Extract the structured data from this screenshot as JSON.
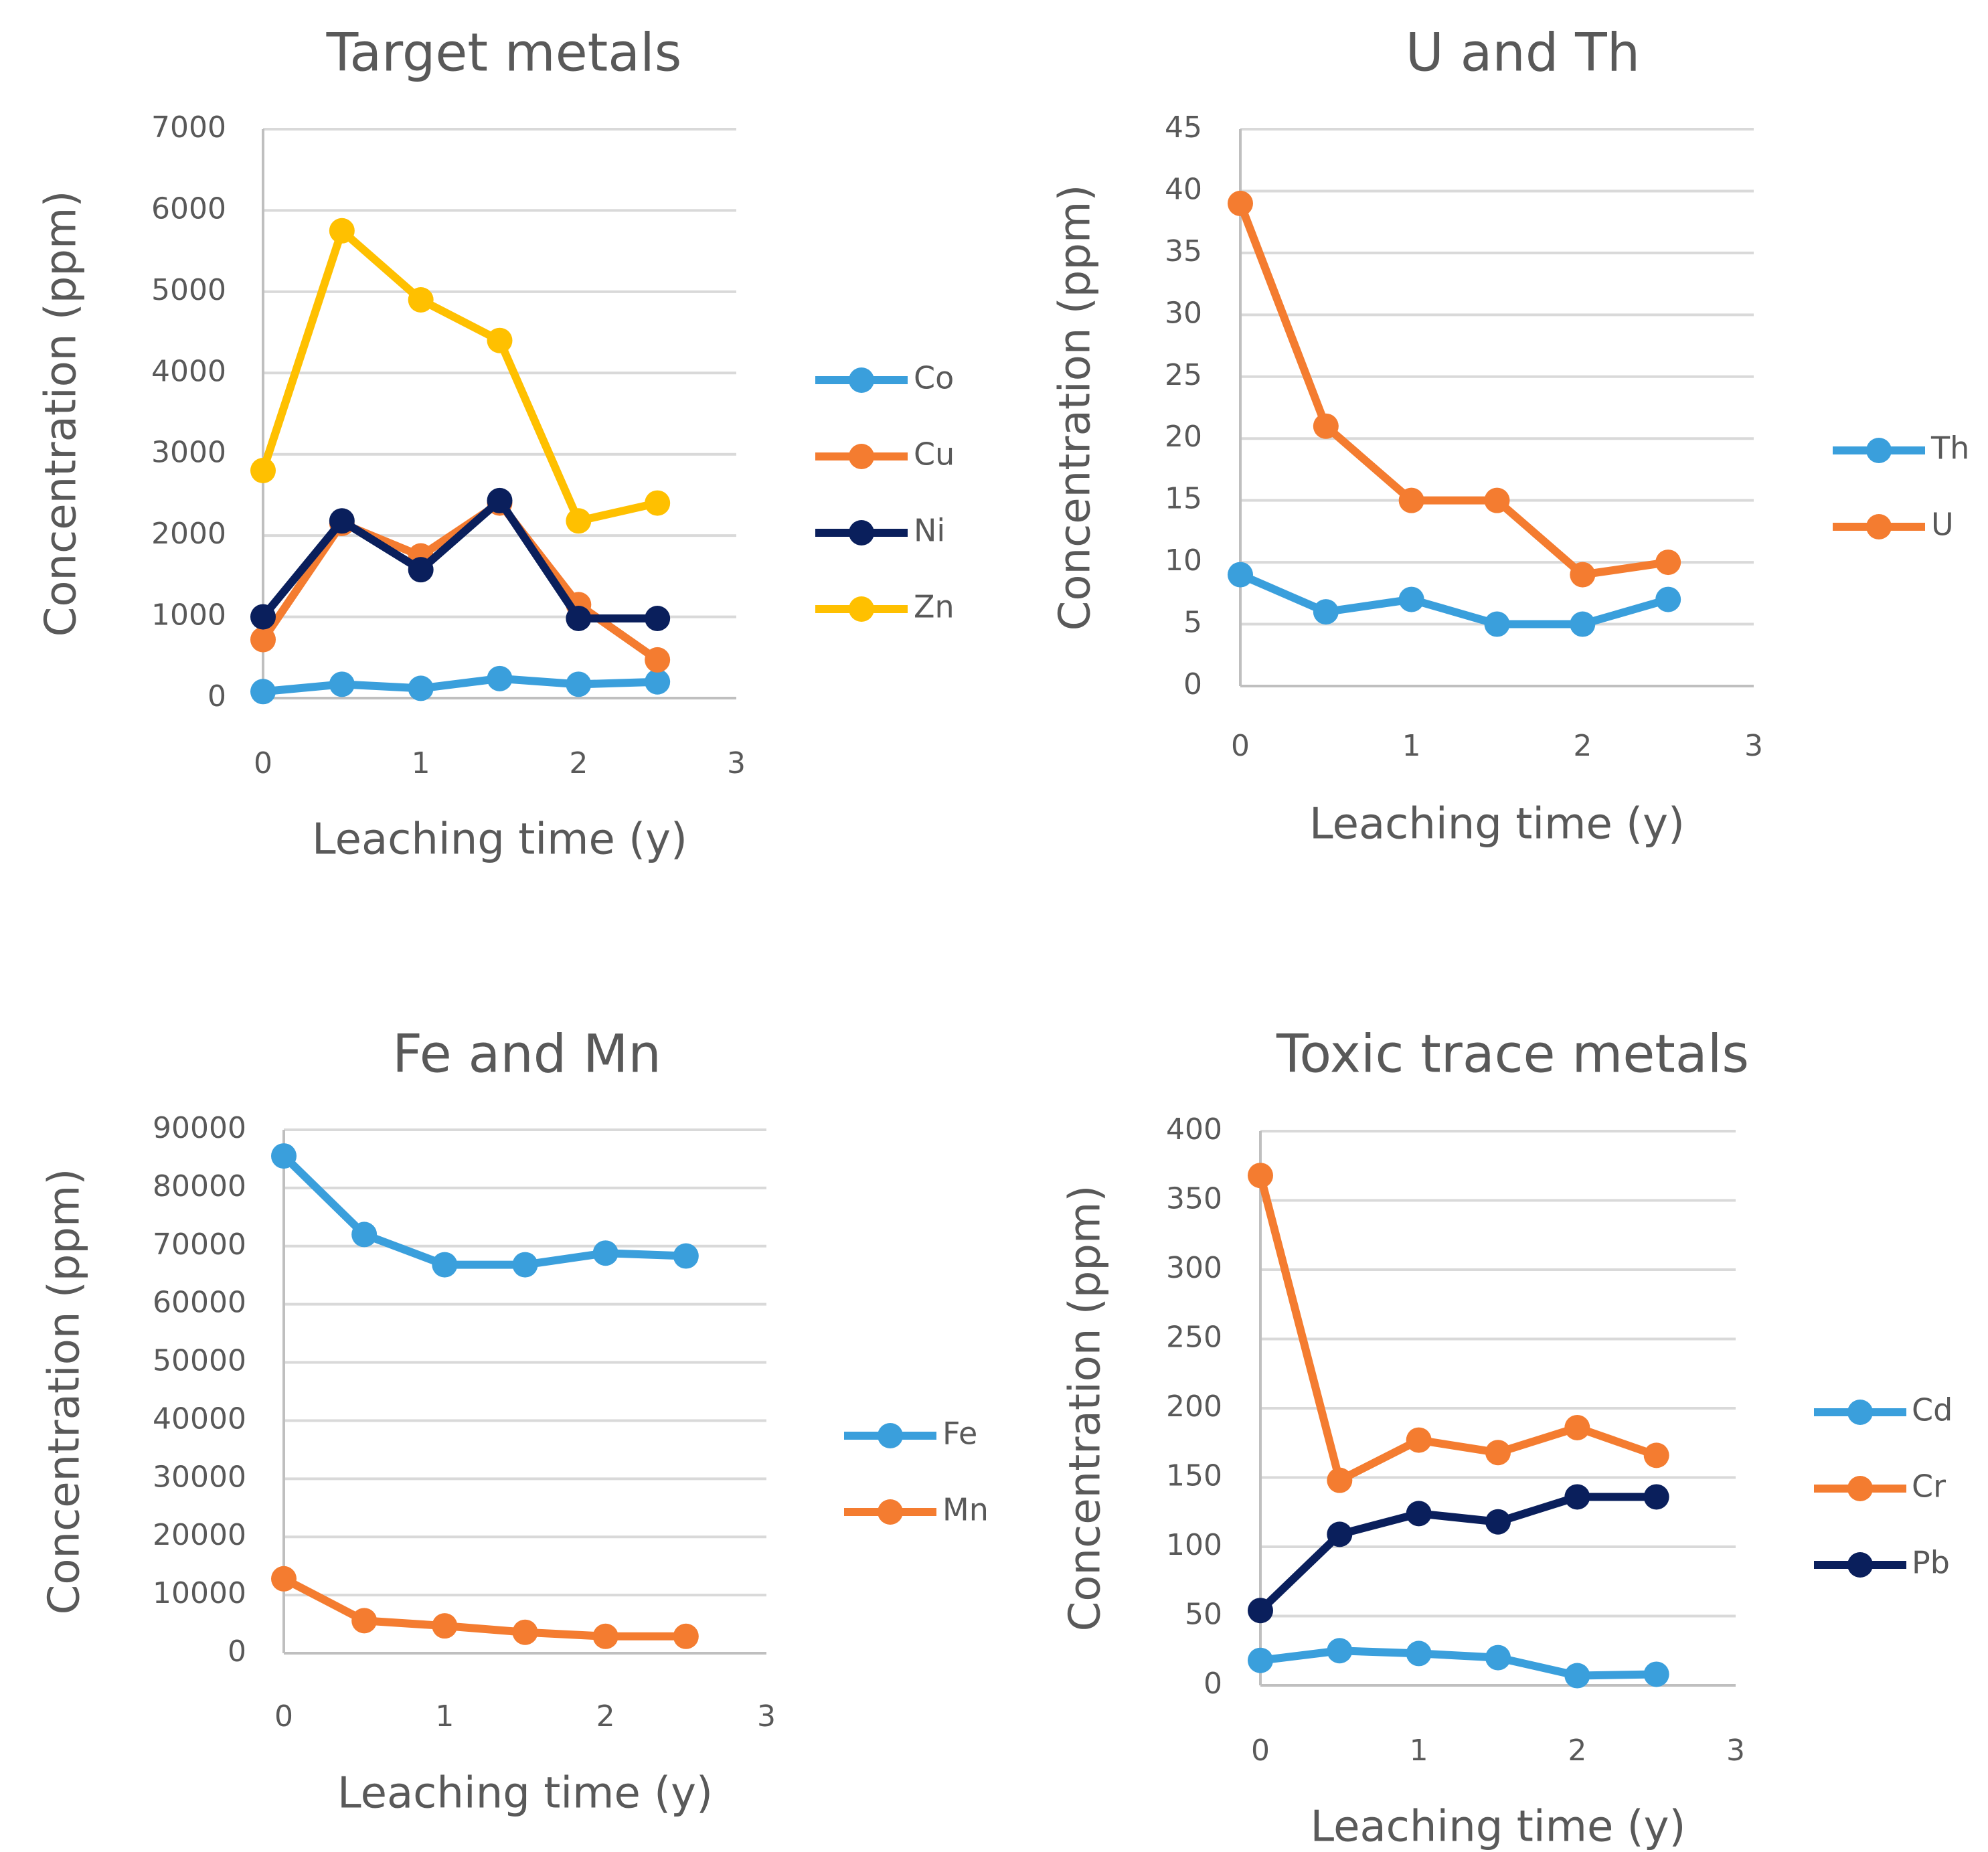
{
  "colors": {
    "Co": "#3a9fdc",
    "Cu": "#f47c30",
    "Ni": "#0a1f5c",
    "Zn": "#ffc000",
    "blue": "#3a9fdc",
    "orange": "#f47c30",
    "navy": "#0a1f5c"
  },
  "chart_data": [
    {
      "type": "line",
      "title": "Target metals",
      "xlabel": "Leaching time (y)",
      "ylabel": "Concentration (ppm)",
      "xlim": [
        0,
        3
      ],
      "xticks": [
        0,
        1,
        2,
        3
      ],
      "ylim": [
        0,
        7000
      ],
      "yticks": [
        0,
        1000,
        2000,
        3000,
        4000,
        5000,
        6000,
        7000
      ],
      "x": [
        0,
        0.5,
        1,
        1.5,
        2,
        2.5
      ],
      "legend": "right",
      "series": [
        {
          "name": "Co",
          "color": "#3a9fdc",
          "values": [
            80,
            170,
            120,
            240,
            170,
            200
          ]
        },
        {
          "name": "Cu",
          "color": "#f47c30",
          "values": [
            720,
            2150,
            1750,
            2400,
            1150,
            470
          ]
        },
        {
          "name": "Ni",
          "color": "#0a1f5c",
          "values": [
            1000,
            2180,
            1580,
            2430,
            980,
            980
          ]
        },
        {
          "name": "Zn",
          "color": "#ffc000",
          "values": [
            2800,
            5750,
            4900,
            4400,
            2180,
            2400
          ]
        }
      ]
    },
    {
      "type": "line",
      "title": "U and Th",
      "xlabel": "Leaching time (y)",
      "ylabel": "Concentration (ppm)",
      "xlim": [
        0,
        3
      ],
      "xticks": [
        0,
        1,
        2,
        3
      ],
      "ylim": [
        0,
        45
      ],
      "yticks": [
        0,
        5,
        10,
        15,
        20,
        25,
        30,
        35,
        40,
        45
      ],
      "x": [
        0,
        0.5,
        1,
        1.5,
        2,
        2.5
      ],
      "legend": "right",
      "series": [
        {
          "name": "Th",
          "color": "#3a9fdc",
          "values": [
            9,
            6,
            7,
            5,
            5,
            7
          ]
        },
        {
          "name": "U",
          "color": "#f47c30",
          "values": [
            39,
            21,
            15,
            15,
            9,
            10
          ]
        }
      ]
    },
    {
      "type": "line",
      "title": "Fe and Mn",
      "xlabel": "Leaching time (y)",
      "ylabel": "Concentration (ppm)",
      "xlim": [
        0,
        3
      ],
      "xticks": [
        0,
        1,
        2,
        3
      ],
      "ylim": [
        0,
        90000
      ],
      "yticks": [
        0,
        10000,
        20000,
        30000,
        40000,
        50000,
        60000,
        70000,
        80000,
        90000
      ],
      "x": [
        0,
        0.5,
        1,
        1.5,
        2,
        2.5
      ],
      "legend": "right",
      "series": [
        {
          "name": "Fe",
          "color": "#3a9fdc",
          "values": [
            85500,
            72000,
            66800,
            66800,
            68800,
            68300
          ]
        },
        {
          "name": "Mn",
          "color": "#f47c30",
          "values": [
            12800,
            5600,
            4700,
            3600,
            2900,
            2900
          ]
        }
      ]
    },
    {
      "type": "line",
      "title": "Toxic trace metals",
      "xlabel": "Leaching time (y)",
      "ylabel": "Concentration (ppm)",
      "xlim": [
        0,
        3
      ],
      "xticks": [
        0,
        1,
        2,
        3
      ],
      "ylim": [
        0,
        400
      ],
      "yticks": [
        0,
        50,
        100,
        150,
        200,
        250,
        300,
        350,
        400
      ],
      "x": [
        0,
        0.5,
        1,
        1.5,
        2,
        2.5
      ],
      "legend": "right",
      "series": [
        {
          "name": "Cd",
          "color": "#3a9fdc",
          "values": [
            18,
            25,
            23,
            20,
            7,
            8
          ]
        },
        {
          "name": "Cr",
          "color": "#f47c30",
          "values": [
            368,
            148,
            177,
            168,
            186,
            166
          ]
        },
        {
          "name": "Pb",
          "color": "#0a1f5c",
          "values": [
            54,
            109,
            124,
            118,
            136,
            136
          ]
        }
      ]
    }
  ]
}
